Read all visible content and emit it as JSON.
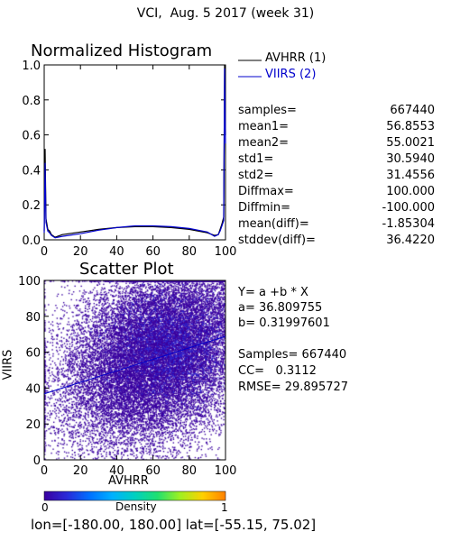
{
  "page": {
    "title": "VCI,  Aug. 5 2017 (week 31)",
    "footer": "lon=[-180.00, 180.00] lat=[-55.15, 75.02]"
  },
  "legend": {
    "items": [
      {
        "label": "AVHRR (1)",
        "color": "#000000"
      },
      {
        "label": "VIIRS (2)",
        "color": "#0000cc"
      }
    ]
  },
  "stats": [
    {
      "key": "samples=",
      "value": "667440"
    },
    {
      "key": "mean1=",
      "value": "56.8553"
    },
    {
      "key": "mean2=",
      "value": "55.0021"
    },
    {
      "key": "std1=",
      "value": "30.5940"
    },
    {
      "key": "std2=",
      "value": "31.4556"
    },
    {
      "key": "Diffmax=",
      "value": "100.000"
    },
    {
      "key": "Diffmin=",
      "value": "-100.000"
    },
    {
      "key": "mean(diff)=",
      "value": "-1.85304"
    },
    {
      "key": "stddev(diff)=",
      "value": "36.4220"
    }
  ],
  "regression": {
    "equation": "Y= a +b * X",
    "a_label": "a= 36.809755",
    "b_label": "b= 0.31997601",
    "samples_label": "Samples= 667440",
    "cc_label": "CC=   0.3112",
    "rmse_label": "RMSE= 29.895727"
  },
  "colorbar": {
    "label": "Density",
    "min_label": "0",
    "max_label": "1",
    "colors": [
      "#3a00a0",
      "#2a2ad8",
      "#0070ff",
      "#00b0ff",
      "#00d0c0",
      "#20e070",
      "#a0f020",
      "#ffd000",
      "#ff8000"
    ]
  },
  "chart_data": [
    {
      "type": "line",
      "title": "Normalized Histogram",
      "xlabel": "",
      "ylabel": "",
      "xlim": [
        0,
        100
      ],
      "ylim": [
        0,
        1.0
      ],
      "xticks": [
        "0",
        "20",
        "40",
        "60",
        "80",
        "100"
      ],
      "yticks": [
        "0.0",
        "0.2",
        "0.4",
        "0.6",
        "0.8",
        "1.0"
      ],
      "series": [
        {
          "name": "AVHRR (1)",
          "color": "#000000",
          "x": [
            0,
            0.5,
            1,
            2,
            3,
            4,
            6,
            10,
            20,
            30,
            40,
            50,
            60,
            70,
            80,
            90,
            94,
            96,
            97,
            98,
            99,
            99.5,
            100
          ],
          "y": [
            0.05,
            0.52,
            0.12,
            0.06,
            0.05,
            0.03,
            0.015,
            0.03,
            0.045,
            0.06,
            0.07,
            0.075,
            0.075,
            0.07,
            0.06,
            0.04,
            0.025,
            0.03,
            0.06,
            0.09,
            0.13,
            1.0,
            0.6
          ]
        },
        {
          "name": "VIIRS (2)",
          "color": "#0000cc",
          "x": [
            0,
            0.5,
            1,
            2,
            3,
            4,
            6,
            10,
            20,
            30,
            40,
            50,
            60,
            70,
            80,
            90,
            94,
            96,
            97,
            98,
            99,
            99.5,
            100
          ],
          "y": [
            0.04,
            0.44,
            0.1,
            0.05,
            0.04,
            0.025,
            0.012,
            0.02,
            0.035,
            0.055,
            0.07,
            0.08,
            0.08,
            0.075,
            0.065,
            0.045,
            0.02,
            0.03,
            0.05,
            0.08,
            0.11,
            0.98,
            0.55
          ]
        }
      ]
    },
    {
      "type": "scatter",
      "title": "Scatter Plot",
      "xlabel": "AVHRR",
      "ylabel": "VIIRS",
      "xlim": [
        0,
        100
      ],
      "ylim": [
        0,
        100
      ],
      "xticks": [
        "0",
        "20",
        "40",
        "60",
        "80",
        "100"
      ],
      "yticks": [
        "0",
        "20",
        "40",
        "60",
        "80",
        "100"
      ],
      "samples": 667440,
      "fit": {
        "a": 36.809755,
        "b": 0.31997601,
        "color": "#0000cc"
      },
      "density_color": "#3a00a0",
      "high_density_color": "#2a2ad8"
    }
  ]
}
